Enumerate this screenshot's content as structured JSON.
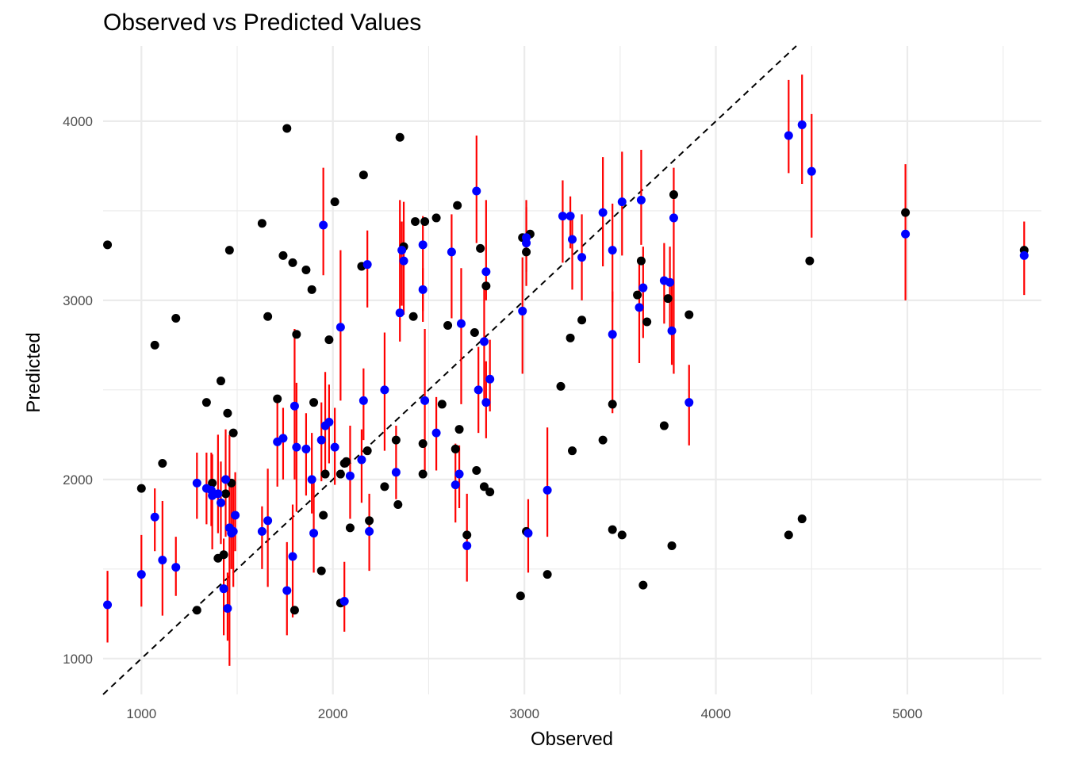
{
  "chart_data": {
    "type": "scatter",
    "title": "Observed vs Predicted Values",
    "xlabel": "Observed",
    "ylabel": "Predicted",
    "xlim": [
      800,
      5700
    ],
    "ylim": [
      800,
      4420
    ],
    "x_ticks": [
      1000,
      2000,
      3000,
      4000,
      5000
    ],
    "x_tick_labels": [
      "1000",
      "2000",
      "3000",
      "4000",
      "5000"
    ],
    "y_ticks": [
      1000,
      2000,
      3000,
      4000
    ],
    "y_tick_labels": [
      "1000",
      "2000",
      "3000",
      "4000"
    ],
    "grid": true,
    "reference_line": {
      "type": "identity",
      "style": "dashed",
      "color": "#000000"
    },
    "colors": {
      "interval": "#ff0000",
      "predicted": "#0000ff",
      "comparison": "#000000",
      "grid": "#ebebeb"
    },
    "series": [
      {
        "marker": "blue-point-with-red-interval",
        "points": [
          [
            823,
            1300,
            1090,
            1490
          ],
          [
            1000,
            1470,
            1290,
            1690
          ],
          [
            1070,
            1790,
            1600,
            1950
          ],
          [
            1110,
            1550,
            1240,
            1880
          ],
          [
            1180,
            1510,
            1350,
            1680
          ],
          [
            1290,
            1980,
            1780,
            2150
          ],
          [
            1340,
            1950,
            1750,
            2150
          ],
          [
            1365,
            1940,
            1740,
            2150
          ],
          [
            1370,
            1910,
            1610,
            2140
          ],
          [
            1400,
            1920,
            1700,
            2250
          ],
          [
            1415,
            1870,
            1640,
            2100
          ],
          [
            1430,
            1390,
            1130,
            1670
          ],
          [
            1440,
            2000,
            1680,
            2280
          ],
          [
            1450,
            1280,
            1100,
            1480
          ],
          [
            1460,
            1730,
            960,
            2250
          ],
          [
            1470,
            1700,
            1500,
            1960
          ],
          [
            1480,
            1710,
            1400,
            1960
          ],
          [
            1490,
            1800,
            1600,
            2040
          ],
          [
            1630,
            1710,
            1500,
            1850
          ],
          [
            1660,
            1770,
            1400,
            2060
          ],
          [
            1710,
            2210,
            1960,
            2460
          ],
          [
            1740,
            2230,
            2000,
            2400
          ],
          [
            1760,
            1380,
            1130,
            1650
          ],
          [
            1790,
            1570,
            1230,
            1860
          ],
          [
            1800,
            2410,
            2000,
            2840
          ],
          [
            1810,
            2180,
            1820,
            2540
          ],
          [
            1860,
            2170,
            1910,
            2370
          ],
          [
            1890,
            2000,
            1810,
            2260
          ],
          [
            1900,
            1700,
            1480,
            2000
          ],
          [
            1940,
            2220,
            1990,
            2430
          ],
          [
            1950,
            3420,
            3140,
            3740
          ],
          [
            1960,
            2300,
            2040,
            2600
          ],
          [
            1980,
            2320,
            2090,
            2530
          ],
          [
            2010,
            2180,
            1970,
            2400
          ],
          [
            2040,
            2850,
            2440,
            3280
          ],
          [
            2060,
            1320,
            1150,
            1540
          ],
          [
            2090,
            2020,
            1780,
            2300
          ],
          [
            2150,
            2110,
            1870,
            2280
          ],
          [
            2160,
            2440,
            2220,
            2620
          ],
          [
            2180,
            3200,
            2960,
            3390
          ],
          [
            2190,
            1710,
            1490,
            1920
          ],
          [
            2270,
            2500,
            2160,
            2820
          ],
          [
            2330,
            2040,
            1890,
            2300
          ],
          [
            2350,
            2930,
            2770,
            3560
          ],
          [
            2360,
            3280,
            2970,
            3440
          ],
          [
            2370,
            3220,
            2920,
            3550
          ],
          [
            2470,
            3060,
            2880,
            3180
          ],
          [
            2480,
            2440,
            2050,
            2840
          ],
          [
            2470,
            3310,
            2940,
            3470
          ],
          [
            2540,
            2260,
            2050,
            2460
          ],
          [
            2620,
            3270,
            2900,
            3480
          ],
          [
            2640,
            1970,
            1760,
            2200
          ],
          [
            2660,
            2030,
            1840,
            2190
          ],
          [
            2670,
            2870,
            2420,
            3180
          ],
          [
            2700,
            1630,
            1430,
            1920
          ],
          [
            2750,
            3610,
            3320,
            3920
          ],
          [
            2760,
            2500,
            2260,
            2740
          ],
          [
            2790,
            2770,
            2450,
            3080
          ],
          [
            2800,
            3160,
            3000,
            3560
          ],
          [
            2800,
            2430,
            2230,
            2660
          ],
          [
            2820,
            2560,
            2380,
            2780
          ],
          [
            2990,
            2940,
            2590,
            3240
          ],
          [
            3010,
            3320,
            3080,
            3520
          ],
          [
            3020,
            1700,
            1480,
            1890
          ],
          [
            3010,
            3350,
            3160,
            3560
          ],
          [
            3120,
            1940,
            1680,
            2290
          ],
          [
            3200,
            3470,
            3210,
            3670
          ],
          [
            3240,
            3470,
            3290,
            3580
          ],
          [
            3250,
            3340,
            3060,
            3470
          ],
          [
            3300,
            3240,
            3000,
            3480
          ],
          [
            3410,
            3490,
            3190,
            3800
          ],
          [
            3460,
            2810,
            2370,
            3050
          ],
          [
            3460,
            3280,
            2990,
            3540
          ],
          [
            3510,
            3550,
            3250,
            3830
          ],
          [
            3600,
            2960,
            2650,
            3240
          ],
          [
            3610,
            3560,
            3310,
            3840
          ],
          [
            3620,
            3070,
            2790,
            3300
          ],
          [
            3730,
            3110,
            2870,
            3320
          ],
          [
            3760,
            3100,
            2830,
            3300
          ],
          [
            3770,
            2830,
            2640,
            3080
          ],
          [
            3780,
            3460,
            2590,
            3740
          ],
          [
            3860,
            2430,
            2190,
            2640
          ],
          [
            4380,
            3920,
            3710,
            4230
          ],
          [
            4450,
            3980,
            3650,
            4260
          ],
          [
            4500,
            3720,
            3350,
            4040
          ],
          [
            4990,
            3370,
            3000,
            3760
          ],
          [
            5610,
            3250,
            3030,
            3440
          ]
        ]
      },
      {
        "marker": "black-point",
        "points": [
          [
            823,
            3310
          ],
          [
            1000,
            1950
          ],
          [
            1070,
            2750
          ],
          [
            1110,
            2090
          ],
          [
            1180,
            2900
          ],
          [
            1290,
            1270
          ],
          [
            1340,
            2430
          ],
          [
            1370,
            1980
          ],
          [
            1400,
            1560
          ],
          [
            1415,
            2550
          ],
          [
            1430,
            1580
          ],
          [
            1440,
            1920
          ],
          [
            1450,
            2370
          ],
          [
            1460,
            3280
          ],
          [
            1470,
            1980
          ],
          [
            1480,
            2260
          ],
          [
            1630,
            3430
          ],
          [
            1660,
            2910
          ],
          [
            1710,
            2450
          ],
          [
            1740,
            3250
          ],
          [
            1760,
            3960
          ],
          [
            1790,
            3210
          ],
          [
            1800,
            1270
          ],
          [
            1810,
            2810
          ],
          [
            1860,
            3170
          ],
          [
            1890,
            3060
          ],
          [
            1900,
            2430
          ],
          [
            1940,
            1490
          ],
          [
            1950,
            1800
          ],
          [
            1960,
            2030
          ],
          [
            1980,
            2780
          ],
          [
            2010,
            3550
          ],
          [
            2040,
            1310
          ],
          [
            2040,
            2030
          ],
          [
            2060,
            2090
          ],
          [
            2070,
            2100
          ],
          [
            2090,
            1730
          ],
          [
            2150,
            3190
          ],
          [
            2160,
            3700
          ],
          [
            2180,
            2160
          ],
          [
            2190,
            1770
          ],
          [
            2270,
            1960
          ],
          [
            2330,
            2220
          ],
          [
            2340,
            1860
          ],
          [
            2350,
            3910
          ],
          [
            2370,
            3300
          ],
          [
            2420,
            2910
          ],
          [
            2430,
            3440
          ],
          [
            2470,
            2030
          ],
          [
            2470,
            2200
          ],
          [
            2480,
            3440
          ],
          [
            2540,
            3460
          ],
          [
            2570,
            2420
          ],
          [
            2600,
            2860
          ],
          [
            2640,
            2170
          ],
          [
            2650,
            3530
          ],
          [
            2660,
            2280
          ],
          [
            2700,
            1690
          ],
          [
            2740,
            2820
          ],
          [
            2750,
            2050
          ],
          [
            2770,
            3290
          ],
          [
            2790,
            1960
          ],
          [
            2800,
            3080
          ],
          [
            2820,
            1930
          ],
          [
            2980,
            1350
          ],
          [
            2990,
            3350
          ],
          [
            3010,
            1710
          ],
          [
            3010,
            3270
          ],
          [
            3030,
            3370
          ],
          [
            3120,
            1470
          ],
          [
            3190,
            2520
          ],
          [
            3240,
            2790
          ],
          [
            3250,
            2160
          ],
          [
            3300,
            2890
          ],
          [
            3410,
            2220
          ],
          [
            3460,
            2420
          ],
          [
            3460,
            1720
          ],
          [
            3510,
            1690
          ],
          [
            3590,
            3030
          ],
          [
            3610,
            3220
          ],
          [
            3620,
            1410
          ],
          [
            3640,
            2880
          ],
          [
            3730,
            2300
          ],
          [
            3750,
            3010
          ],
          [
            3770,
            1630
          ],
          [
            3780,
            3590
          ],
          [
            3860,
            2920
          ],
          [
            4380,
            1690
          ],
          [
            4450,
            1780
          ],
          [
            4490,
            3220
          ],
          [
            4990,
            3490
          ],
          [
            5610,
            3280
          ]
        ]
      }
    ]
  }
}
